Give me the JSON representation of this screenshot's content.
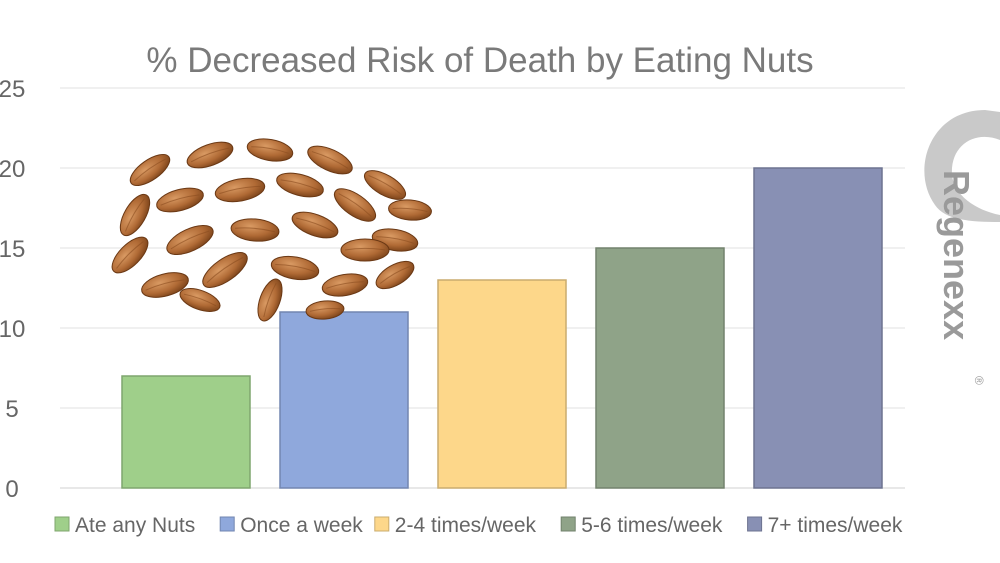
{
  "chart_data": {
    "type": "bar",
    "title": "% Decreased Risk of Death by Eating Nuts",
    "xlabel": "",
    "ylabel": "",
    "ylim": [
      0,
      25
    ],
    "yticks": [
      "0",
      "5",
      "10",
      "15",
      "20",
      "25"
    ],
    "grid": true,
    "legend_position": "bottom",
    "series": [
      {
        "name": "Ate any Nuts",
        "value": 7,
        "color": "#9fcf8a"
      },
      {
        "name": "Once a week",
        "value": 11,
        "color": "#8fa8dc"
      },
      {
        "name": "2-4 times/week",
        "value": 13,
        "color": "#fdd78a"
      },
      {
        "name": "5-6 times/week",
        "value": 15,
        "color": "#8fa388"
      },
      {
        "name": "7+ times/week",
        "value": 20,
        "color": "#8890b4"
      }
    ]
  },
  "logo": {
    "text": "Regenexx",
    "mark": "®"
  },
  "illustration": {
    "icon": "almonds-pile-icon"
  }
}
